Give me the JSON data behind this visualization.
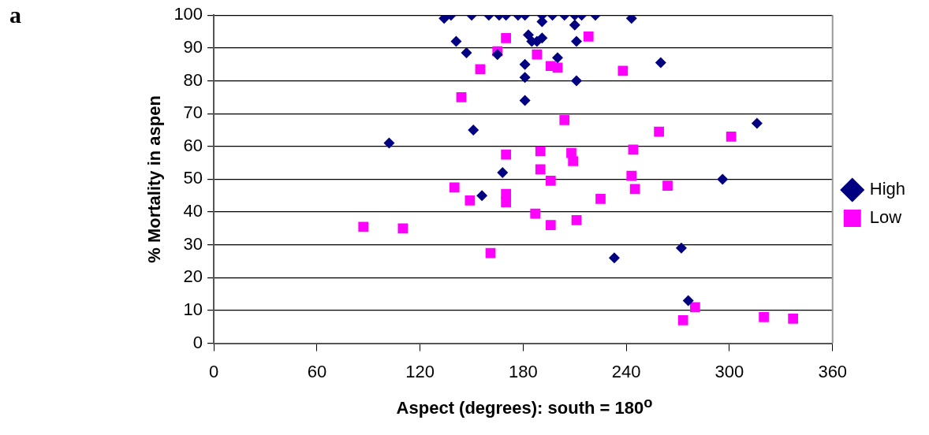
{
  "chart_data": {
    "type": "scatter",
    "xlabel": "Aspect (degrees): south = 180$^{o}$",
    "ylabel": "% Mortality in aspen",
    "annotations": [
      "a"
    ],
    "xlim": [
      0,
      360
    ],
    "xticks": [
      0,
      60,
      120,
      180,
      240,
      300,
      360
    ],
    "ylim": [
      0,
      100
    ],
    "yticks": [
      0,
      10,
      20,
      30,
      40,
      50,
      60,
      70,
      80,
      90,
      100
    ],
    "grid": "y",
    "legend": "right",
    "series": [
      {
        "name": "High",
        "color": "#000080",
        "marker": "diamond",
        "x": [
          134,
          138,
          150,
          160,
          166,
          170,
          177,
          181,
          191,
          191,
          197,
          204,
          210,
          214,
          222,
          243,
          210,
          183,
          191,
          185,
          188,
          211,
          141,
          147,
          165,
          200,
          181,
          181,
          211,
          181,
          260,
          151,
          102,
          168,
          156,
          316,
          296,
          272,
          276,
          233
        ],
        "values": [
          99,
          100,
          100,
          100,
          100,
          100,
          100,
          100,
          100,
          98,
          100,
          100,
          100,
          100,
          100,
          99,
          97,
          94,
          93,
          92,
          92,
          92,
          92,
          88.5,
          88,
          87,
          85,
          81,
          80,
          74,
          85.5,
          65,
          61,
          52,
          45,
          67,
          50,
          29,
          13,
          26
        ]
      },
      {
        "name": "Low",
        "color": "#ff00ff",
        "marker": "square",
        "x": [
          170,
          218,
          165,
          188,
          196,
          200,
          238,
          155,
          144,
          204,
          170,
          190,
          208,
          209,
          244,
          190,
          196,
          243,
          245,
          140,
          149,
          170,
          170,
          225,
          187,
          196,
          211,
          87,
          110,
          161,
          259,
          301,
          264,
          280,
          273,
          320,
          337
        ],
        "values": [
          93,
          93.5,
          89,
          88,
          84.5,
          84,
          83,
          83.5,
          75,
          68,
          57.5,
          58.5,
          58,
          55.5,
          59,
          53,
          49.5,
          51,
          47,
          47.5,
          43.5,
          45.5,
          43,
          44,
          39.5,
          36,
          37.5,
          35.5,
          35,
          27.5,
          64.5,
          63,
          48,
          11,
          7,
          8,
          7.5
        ]
      }
    ]
  }
}
